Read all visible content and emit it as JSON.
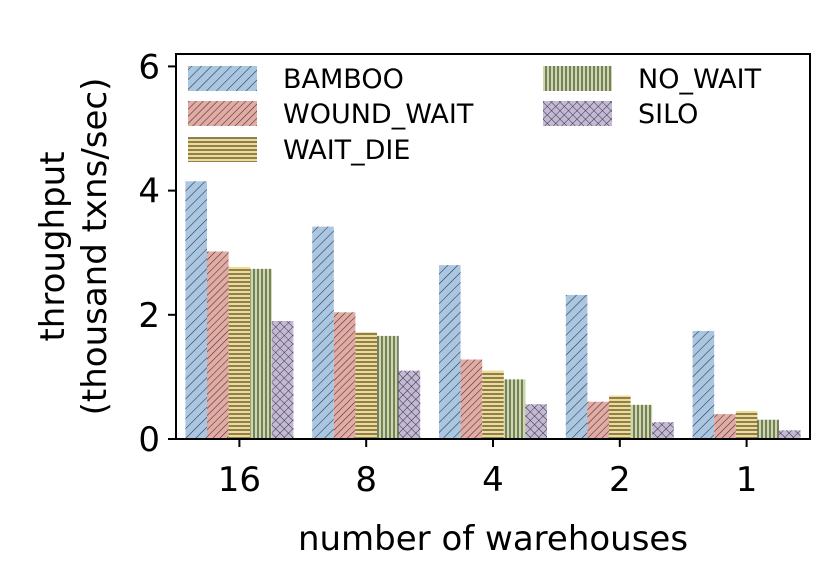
{
  "chart_data": {
    "type": "bar",
    "title": "",
    "xlabel": "number of warehouses",
    "ylabel_line1": "throughput",
    "ylabel_line2": "(thousand txns/sec)",
    "categories": [
      "16",
      "8",
      "4",
      "2",
      "1"
    ],
    "ylim": [
      0,
      6.2
    ],
    "yticks": [
      0,
      2,
      4,
      6
    ],
    "grid": false,
    "legend_position": "top",
    "series": [
      {
        "name": "BAMBOO",
        "color": "#a9c6e3",
        "hatch": "diag",
        "values": [
          4.15,
          3.42,
          2.8,
          2.32,
          1.74
        ]
      },
      {
        "name": "WOUND_WAIT",
        "color": "#e3aba4",
        "hatch": "diag-dense",
        "values": [
          3.02,
          2.04,
          1.28,
          0.6,
          0.4
        ]
      },
      {
        "name": "WAIT_DIE",
        "color": "#f2dc8c",
        "hatch": "horizontal",
        "values": [
          2.77,
          1.72,
          1.1,
          0.7,
          0.45
        ]
      },
      {
        "name": "NO_WAIT",
        "color": "#cbd9a2",
        "hatch": "vertical",
        "values": [
          2.74,
          1.66,
          0.96,
          0.55,
          0.31
        ]
      },
      {
        "name": "SILO",
        "color": "#c3b8d6",
        "hatch": "cross",
        "values": [
          1.9,
          1.1,
          0.56,
          0.27,
          0.14
        ]
      }
    ]
  }
}
